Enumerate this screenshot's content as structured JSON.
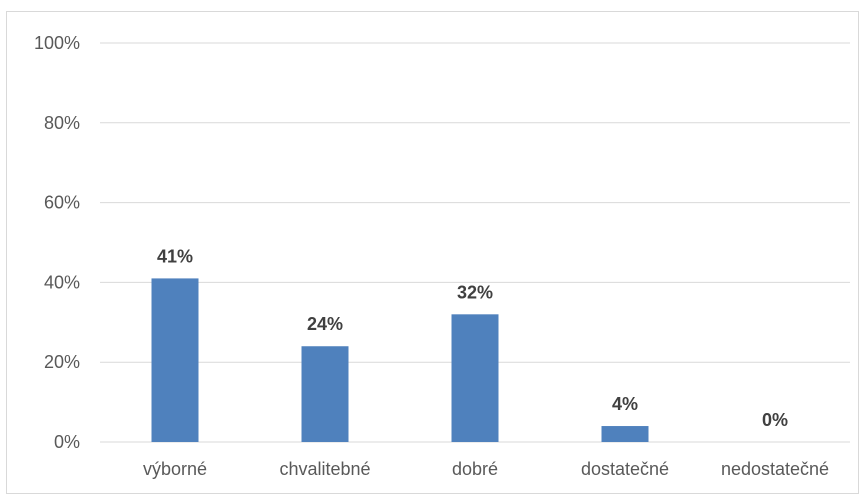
{
  "chart_data": {
    "type": "bar",
    "title": "",
    "xlabel": "",
    "ylabel": "",
    "categories": [
      "výborné",
      "chvalitebné",
      "dobré",
      "dostatečné",
      "nedostatečné"
    ],
    "values": [
      41,
      24,
      32,
      4,
      0
    ],
    "data_labels": [
      "41%",
      "24%",
      "32%",
      "4%",
      "0%"
    ],
    "ylim": [
      0,
      100
    ],
    "yticks": [
      0,
      20,
      40,
      60,
      80,
      100
    ],
    "ytick_labels": [
      "0%",
      "20%",
      "40%",
      "60%",
      "80%",
      "100%"
    ],
    "grid": true,
    "legend": "none",
    "bar_color": "#4f81bd",
    "grid_color": "#d9d9d9",
    "label_color": "#595959",
    "data_label_color": "#404040"
  }
}
